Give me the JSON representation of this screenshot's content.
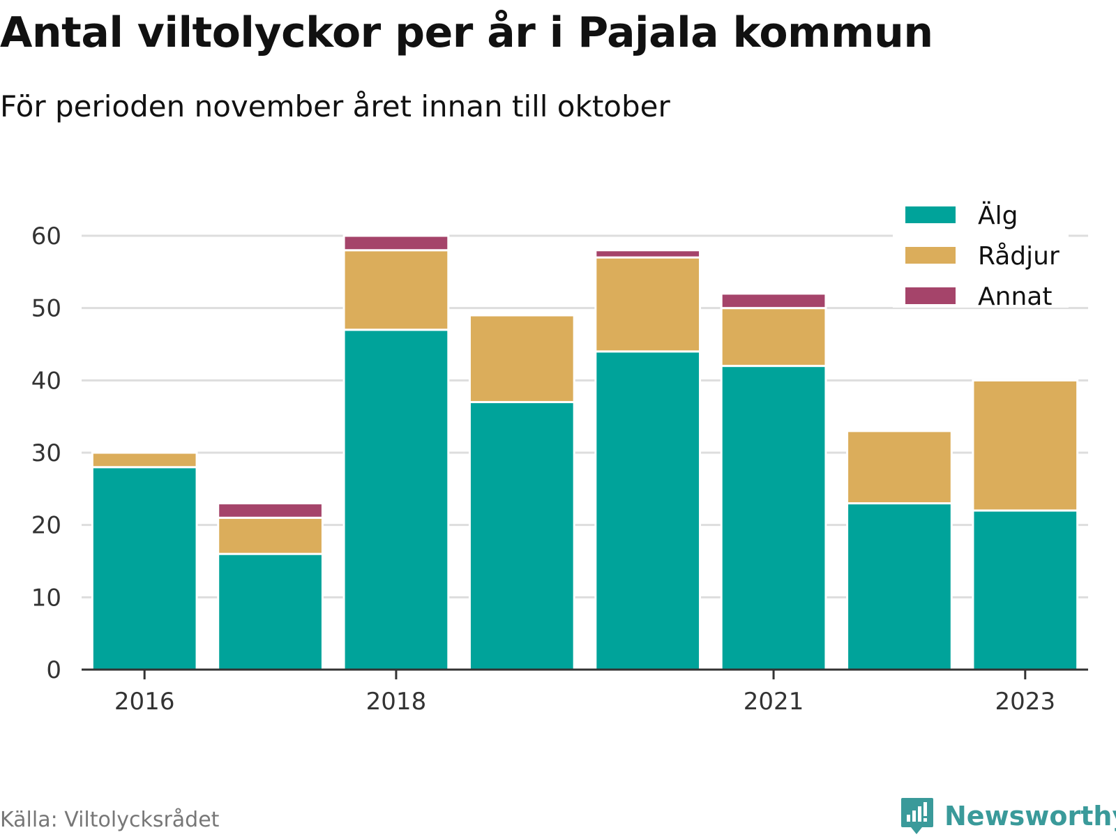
{
  "title": "Antal viltolyckor per år i Pajala kommun",
  "subtitle": "För perioden november året innan till oktober",
  "source": "Källa: Viltolycksrådet",
  "brand": {
    "name": "Newsworthy",
    "icon": "newsworthy-logo-icon"
  },
  "colors": {
    "alg": "#00a39a",
    "radjur": "#dbad5b",
    "annat": "#a5446a",
    "grid": "#dddddd",
    "axis": "#333333"
  },
  "chart_data": {
    "type": "bar",
    "stacked": true,
    "categories": [
      "2016",
      "2017",
      "2018",
      "2019",
      "2020",
      "2021",
      "2022",
      "2023"
    ],
    "x_tick_labels": [
      "2016",
      "2018",
      "2021",
      "2023"
    ],
    "series": [
      {
        "name": "Älg",
        "color": "#00a39a",
        "values": [
          28,
          16,
          47,
          37,
          44,
          42,
          23,
          22
        ]
      },
      {
        "name": "Rådjur",
        "color": "#dbad5b",
        "values": [
          2,
          5,
          11,
          12,
          13,
          8,
          10,
          18
        ]
      },
      {
        "name": "Annat",
        "color": "#a5446a",
        "values": [
          0,
          2,
          2,
          0,
          1,
          2,
          0,
          0
        ]
      }
    ],
    "ylim": [
      0,
      60
    ],
    "yticks": [
      0,
      10,
      20,
      30,
      40,
      50,
      60
    ],
    "grid": true,
    "legend": "top-right"
  }
}
